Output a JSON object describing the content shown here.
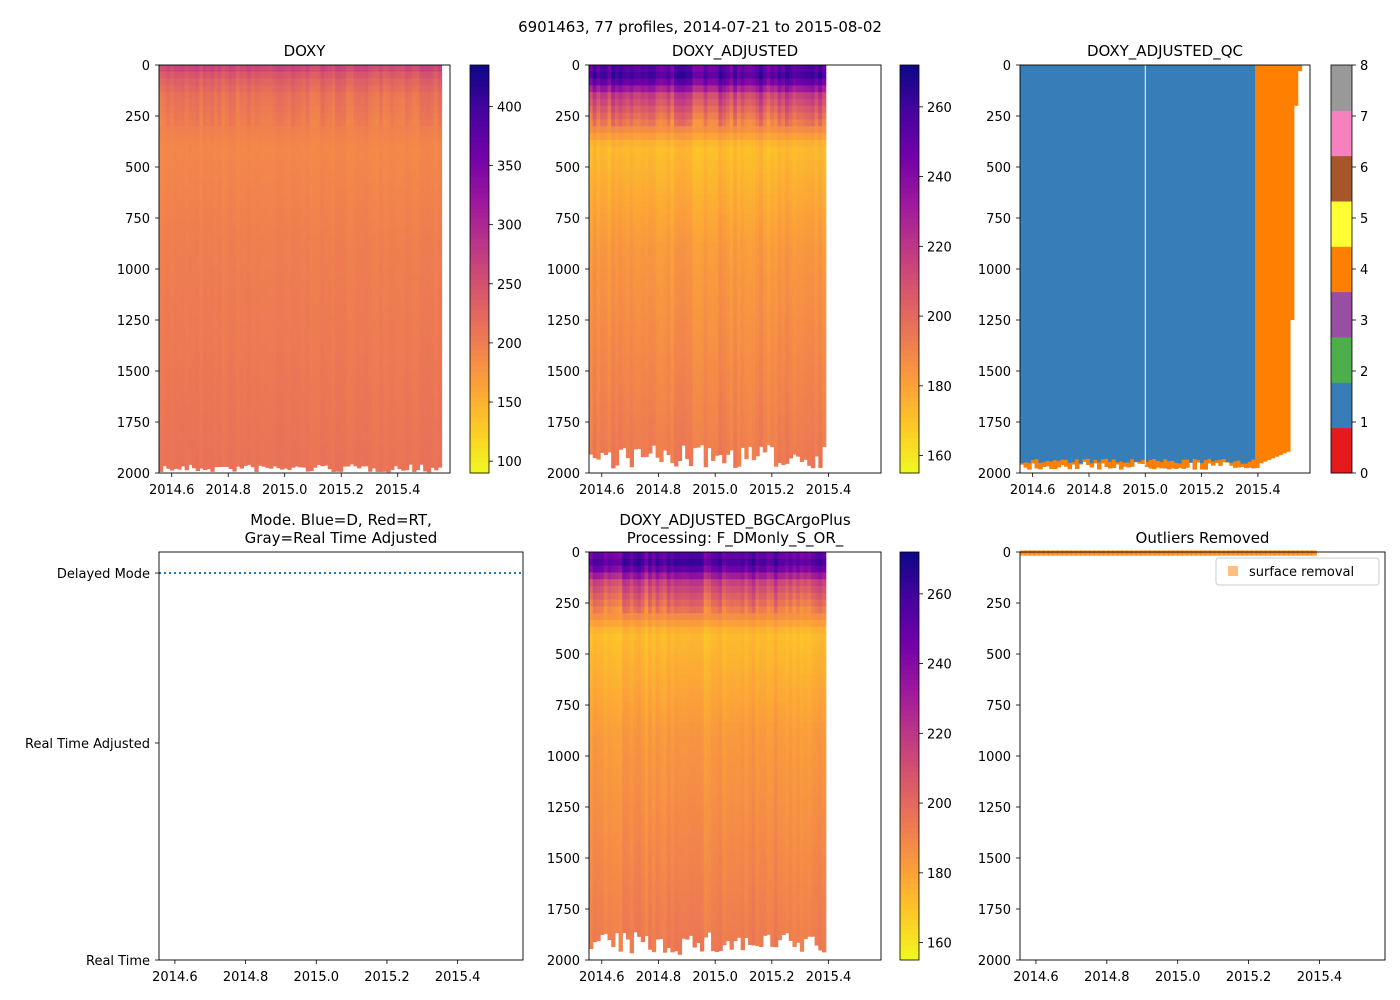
{
  "figure_title": "6901463, 77 profiles, 2014-07-21 to 2015-08-02",
  "colors": {
    "plasma": [
      "#f0f921",
      "#fdca26",
      "#fb9f3a",
      "#ed7953",
      "#d8576b",
      "#bd3786",
      "#9c179e",
      "#7201a8",
      "#46039f",
      "#0d0887"
    ],
    "qc": [
      "#e41a1c",
      "#377eb8",
      "#4daf4a",
      "#984ea3",
      "#ff7f00",
      "#ffff33",
      "#a65628",
      "#f781bf",
      "#999999"
    ],
    "mode_line": "#1f77b4",
    "outlier": "#ff7f00",
    "qc_main": "#377eb8",
    "qc_flag4": "#ff7f00"
  },
  "chart_data": [
    {
      "id": "doxy",
      "type": "heatmap",
      "title": "DOXY",
      "xlim": [
        2014.555,
        2015.585
      ],
      "ylim": [
        2000,
        0
      ],
      "xticks": [
        2014.6,
        2014.8,
        2015.0,
        2015.2,
        2015.4
      ],
      "xtick_labels": [
        "2014.6",
        "2014.8",
        "2015.0",
        "2015.2",
        "2015.4"
      ],
      "yticks": [
        0,
        250,
        500,
        750,
        1000,
        1250,
        1500,
        1750,
        2000
      ],
      "colorbar": {
        "cmap": "plasma",
        "range": [
          90,
          435
        ],
        "ticks": [
          100,
          150,
          200,
          250,
          300,
          350,
          400
        ]
      },
      "profiles": {
        "start": 2014.555,
        "end": 2015.555,
        "count": 77
      },
      "value_profile": [
        {
          "depth": 0,
          "value": 270
        },
        {
          "depth": 60,
          "value": 235
        },
        {
          "depth": 150,
          "value": 212
        },
        {
          "depth": 400,
          "value": 190
        },
        {
          "depth": 900,
          "value": 200
        },
        {
          "depth": 2000,
          "value": 212
        }
      ],
      "bottom_depth_range": [
        1955,
        1995
      ]
    },
    {
      "id": "doxy_adjusted",
      "type": "heatmap",
      "title": "DOXY_ADJUSTED",
      "xlim": [
        2014.555,
        2015.585
      ],
      "ylim": [
        2000,
        0
      ],
      "xticks": [
        2014.6,
        2014.8,
        2015.0,
        2015.2,
        2015.4
      ],
      "xtick_labels": [
        "2014.6",
        "2014.8",
        "2015.0",
        "2015.2",
        "2015.4"
      ],
      "yticks": [
        0,
        250,
        500,
        750,
        1000,
        1250,
        1500,
        1750,
        2000
      ],
      "colorbar": {
        "cmap": "plasma",
        "range": [
          155,
          272
        ],
        "ticks": [
          160,
          180,
          200,
          220,
          240,
          260
        ]
      },
      "profiles": {
        "start": 2014.555,
        "end": 2015.39,
        "count": 64
      },
      "value_profile": [
        {
          "depth": 0,
          "value": 248
        },
        {
          "depth": 60,
          "value": 258
        },
        {
          "depth": 150,
          "value": 215
        },
        {
          "depth": 400,
          "value": 172
        },
        {
          "depth": 900,
          "value": 183
        },
        {
          "depth": 2000,
          "value": 194
        }
      ],
      "bottom_depth_range": [
        1860,
        1975
      ]
    },
    {
      "id": "doxy_adjusted_qc",
      "type": "heatmap",
      "title": "DOXY_ADJUSTED_QC",
      "xlim": [
        2014.555,
        2015.585
      ],
      "ylim": [
        2000,
        0
      ],
      "xticks": [
        2014.6,
        2014.8,
        2015.0,
        2015.2,
        2015.4
      ],
      "xtick_labels": [
        "2014.6",
        "2014.8",
        "2015.0",
        "2015.2",
        "2015.4"
      ],
      "yticks": [
        0,
        250,
        500,
        750,
        1000,
        1250,
        1500,
        1750,
        2000
      ],
      "colorbar": {
        "cmap": "qc",
        "range": [
          0,
          8
        ],
        "ticks": [
          0,
          1,
          2,
          3,
          4,
          5,
          6,
          7,
          8
        ]
      },
      "blocks": [
        {
          "x0": 2014.555,
          "x1": 2015.39,
          "flag": 1
        },
        {
          "x0": 2015.39,
          "x1": 2015.555,
          "flag": 4
        }
      ],
      "bottom_flag": 4
    },
    {
      "id": "mode",
      "type": "line",
      "title": "Mode. Blue=D, Red=RT,",
      "title_line2": "Gray=Real Time Adjusted",
      "xlim": [
        2014.555,
        2015.585
      ],
      "ylim": [
        0,
        2
      ],
      "xticks": [
        2014.6,
        2014.8,
        2015.0,
        2015.2,
        2015.4
      ],
      "xtick_labels": [
        "2014.6",
        "2014.8",
        "2015.0",
        "2015.2",
        "2015.4"
      ],
      "ytick_labels": [
        "Real Time",
        "Real Time Adjusted",
        "Delayed Mode"
      ],
      "series": [
        {
          "name": "Delayed Mode",
          "x": [
            2014.555,
            2015.585
          ],
          "y": [
            1.95,
            1.95
          ],
          "style": "dotted"
        }
      ]
    },
    {
      "id": "doxy_adjusted_bgc",
      "type": "heatmap",
      "title": "DOXY_ADJUSTED_BGCArgoPlus",
      "title_line2": "Processing: F_DMonly_S_OR_",
      "xlim": [
        2014.555,
        2015.585
      ],
      "ylim": [
        2000,
        0
      ],
      "xticks": [
        2014.6,
        2014.8,
        2015.0,
        2015.2,
        2015.4
      ],
      "xtick_labels": [
        "2014.6",
        "2014.8",
        "2015.0",
        "2015.2",
        "2015.4"
      ],
      "yticks": [
        0,
        250,
        500,
        750,
        1000,
        1250,
        1500,
        1750,
        2000
      ],
      "colorbar": {
        "cmap": "plasma",
        "range": [
          155,
          272
        ],
        "ticks": [
          160,
          180,
          200,
          220,
          240,
          260
        ]
      },
      "profiles": {
        "start": 2014.555,
        "end": 2015.39,
        "count": 64
      },
      "value_profile": [
        {
          "depth": 0,
          "value": 248
        },
        {
          "depth": 60,
          "value": 258
        },
        {
          "depth": 150,
          "value": 215
        },
        {
          "depth": 400,
          "value": 172
        },
        {
          "depth": 900,
          "value": 183
        },
        {
          "depth": 2000,
          "value": 194
        }
      ],
      "bottom_depth_range": [
        1860,
        1975
      ]
    },
    {
      "id": "outliers",
      "type": "scatter",
      "title": "Outliers Removed",
      "xlim": [
        2014.555,
        2015.585
      ],
      "ylim": [
        2000,
        0
      ],
      "xticks": [
        2014.6,
        2014.8,
        2015.0,
        2015.2,
        2015.4
      ],
      "xtick_labels": [
        "2014.6",
        "2014.8",
        "2015.0",
        "2015.2",
        "2015.4"
      ],
      "yticks": [
        0,
        250,
        500,
        750,
        1000,
        1250,
        1500,
        1750,
        2000
      ],
      "legend": [
        {
          "label": "surface removal",
          "position": "top-right"
        }
      ],
      "series": [
        {
          "name": "surface removal",
          "x_range": [
            2014.555,
            2015.39
          ],
          "depths": [
            1,
            5,
            10
          ],
          "count": 64
        }
      ]
    }
  ]
}
